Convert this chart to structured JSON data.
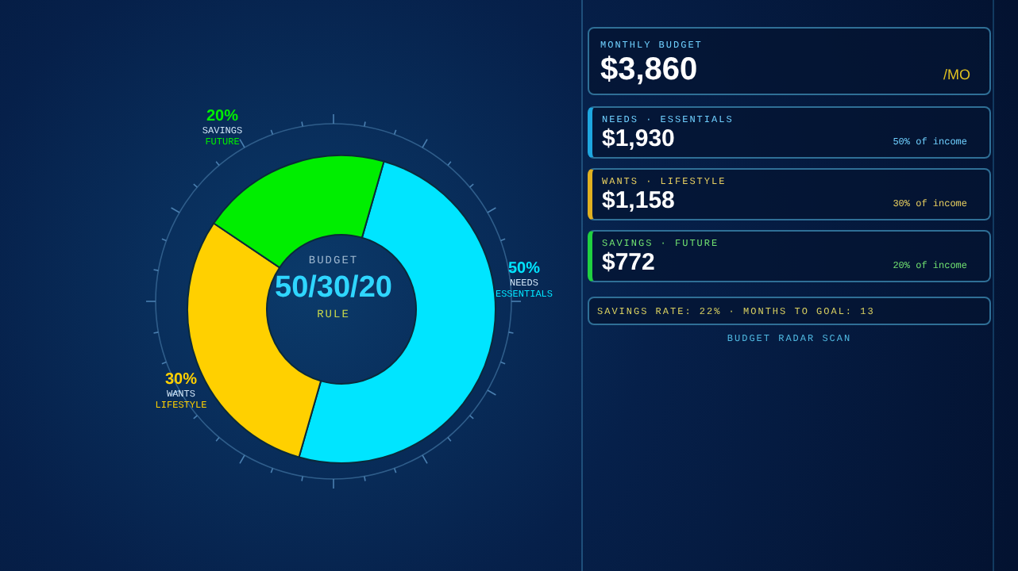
{
  "chart_data": [
    {
      "type": "donut",
      "categories": [
        "NEEDS ESSENTIALS",
        "WANTS LIFESTYLE",
        "SAVINGS FUTURE"
      ],
      "values": [
        50,
        30,
        20
      ],
      "colors": [
        "#00e5ff",
        "#ffd000",
        "#00ee00"
      ],
      "value_labels": [
        "50%",
        "30%",
        "20%"
      ],
      "annotations": [
        "BUDGET",
        "50/30/20",
        "RULE"
      ]
    },
    {
      "type": "other",
      "annotations": [
        "MONTHLY BUDGET",
        "$3,860",
        "/MO",
        "NEEDS · ESSENTIALS",
        "$1,930",
        "50% of income",
        "WANTS · LIFESTYLE",
        "$1,158",
        "30% of income",
        "SAVINGS · FUTURE",
        "$772",
        "20% of income",
        "SAVINGS RATE: 22% · MONTHS TO GOAL: 13",
        "BUDGET RADAR SCAN"
      ]
    }
  ]
}
